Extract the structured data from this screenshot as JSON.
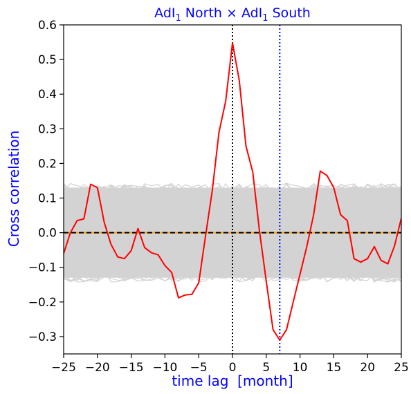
{
  "chart_data": {
    "type": "line",
    "title": {
      "prefix": "AdI",
      "sub1": "1",
      "middle": " North × AdI",
      "sub2": "1",
      "suffix": " South"
    },
    "xlabel": "time lag  [month]",
    "ylabel": "Cross correlation",
    "xlim": [
      -25,
      25
    ],
    "ylim": [
      -0.35,
      0.6
    ],
    "xticks": [
      -25,
      -20,
      -15,
      -10,
      -5,
      0,
      5,
      10,
      15,
      20,
      25
    ],
    "xtick_labels": [
      "−25",
      "−20",
      "−15",
      "−10",
      "−5",
      "0",
      "5",
      "10",
      "15",
      "20",
      "25"
    ],
    "yticks": [
      -0.3,
      -0.2,
      -0.1,
      0.0,
      0.1,
      0.2,
      0.3,
      0.4,
      0.5,
      0.6
    ],
    "ytick_labels": [
      "−0.3",
      "−0.2",
      "−0.1",
      "0.0",
      "0.1",
      "0.2",
      "0.3",
      "0.4",
      "0.5",
      "0.6"
    ],
    "grid": false,
    "null_band": {
      "upper": 0.13,
      "lower": -0.13,
      "color": "#d3d3d3"
    },
    "reference_lines": {
      "zero_lag": 0,
      "peak_lag": 7,
      "zero_correlation": 0
    },
    "series": [
      {
        "x": [
          -25,
          -24,
          -23,
          -22,
          -21,
          -20,
          -19,
          -18,
          -17,
          -16,
          -15,
          -14,
          -13,
          -12,
          -11,
          -10,
          -9,
          -8,
          -7,
          -6,
          -5,
          -4,
          -3,
          -2,
          -1,
          0,
          1,
          2,
          3,
          4,
          5,
          6,
          7,
          8,
          9,
          10,
          11,
          12,
          13,
          14,
          15,
          16,
          17,
          18,
          19,
          20,
          21,
          22,
          23,
          24,
          25
        ],
        "y": [
          -0.06,
          0.0,
          0.035,
          0.04,
          0.14,
          0.13,
          0.03,
          -0.033,
          -0.07,
          -0.075,
          -0.052,
          0.012,
          -0.043,
          -0.058,
          -0.064,
          -0.095,
          -0.115,
          -0.188,
          -0.18,
          -0.178,
          -0.145,
          -0.01,
          0.12,
          0.29,
          0.38,
          0.548,
          0.44,
          0.25,
          0.175,
          0.005,
          -0.14,
          -0.28,
          -0.31,
          -0.28,
          -0.2,
          -0.12,
          -0.04,
          0.05,
          0.178,
          0.165,
          0.13,
          0.052,
          0.035,
          -0.075,
          -0.085,
          -0.075,
          -0.04,
          -0.08,
          -0.09,
          -0.038,
          0.042
        ],
        "color": "#ff0000"
      }
    ],
    "colors": {
      "series": "#ff0000",
      "null_band": "#d3d3d3",
      "zero_lag_line": "#000000",
      "peak_lag_line": "#0000ff",
      "zero_line_black": "#000000",
      "zero_line_orange": "#ffa500",
      "labels": "#0000ff"
    }
  }
}
